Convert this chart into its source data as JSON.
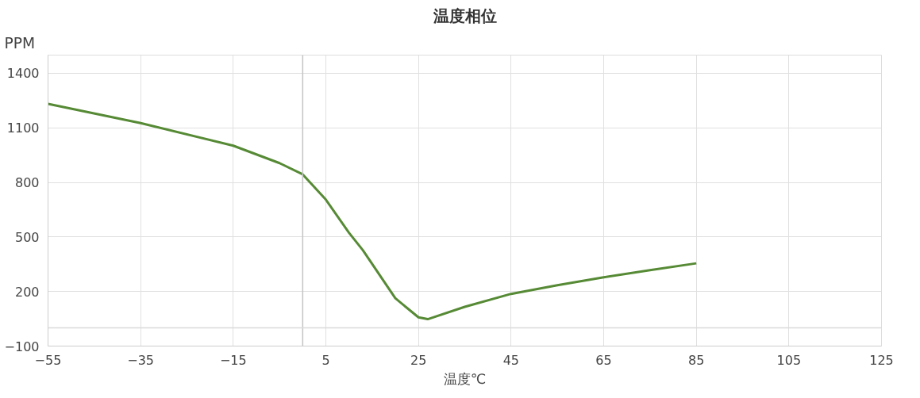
{
  "chart_data": {
    "type": "line",
    "title": "温度相位",
    "xlabel": "温度℃",
    "ylabel": "PPM",
    "x": [
      -55,
      -35,
      -15,
      -5,
      0,
      5,
      10,
      13,
      20,
      25,
      27,
      35,
      45,
      55,
      65,
      75,
      85
    ],
    "series": [
      {
        "color": "#568a35",
        "values": [
          1232,
          1126,
          1002,
          906,
          844,
          705,
          523,
          427,
          163,
          58,
          48,
          116,
          187,
          235,
          278,
          317,
          355
        ]
      }
    ],
    "xlim": [
      -55,
      125
    ],
    "xticks": [
      -55,
      -35,
      -15,
      5,
      25,
      45,
      65,
      85,
      105,
      125
    ],
    "ylim": [
      -100,
      1500
    ],
    "yticks": [
      -100,
      200,
      500,
      800,
      1100,
      1400
    ],
    "ref_lines": [
      {
        "axis": "x",
        "value": 0,
        "color": "#c4c4c4"
      },
      {
        "axis": "y",
        "value": 0,
        "color": "#dadada"
      }
    ],
    "grid": true,
    "marker": "none",
    "line_style": "solid"
  }
}
